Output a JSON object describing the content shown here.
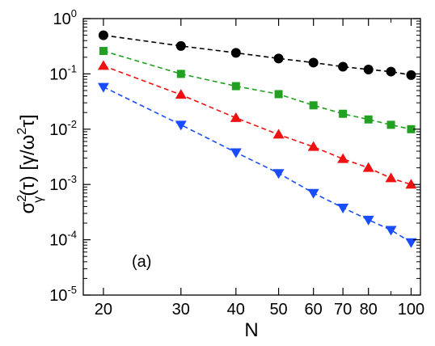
{
  "chart_data": {
    "type": "scatter",
    "panel_label": "(a)",
    "xlabel": "N",
    "ylabel": {
      "main": "σ",
      "sup": "2",
      "sub": "γ",
      "rest_open": "(τ) [γ/ω",
      "rest_sup": "2",
      "rest_close": "τ]"
    },
    "x_scale": "log",
    "y_scale": "log",
    "xlim": [
      18,
      105
    ],
    "ylim": [
      1e-05,
      1
    ],
    "x_ticks": [
      20,
      30,
      40,
      50,
      60,
      70,
      80,
      100
    ],
    "x_tick_labels": [
      "20",
      "30",
      "40",
      "50",
      "60",
      "70",
      "80",
      "100"
    ],
    "y_ticks": [
      {
        "value": 1,
        "base": "10",
        "exp": "0"
      },
      {
        "value": 0.1,
        "base": "10",
        "exp": "-1"
      },
      {
        "value": 0.01,
        "base": "10",
        "exp": "-2"
      },
      {
        "value": 0.001,
        "base": "10",
        "exp": "-3"
      },
      {
        "value": 0.0001,
        "base": "10",
        "exp": "-4"
      },
      {
        "value": 1e-05,
        "base": "10",
        "exp": "-5"
      }
    ],
    "grid": false,
    "series": [
      {
        "marker": "circle",
        "color": "#000000",
        "x": [
          20,
          30,
          40,
          50,
          60,
          70,
          80,
          90,
          100
        ],
        "y": [
          0.5,
          0.32,
          0.24,
          0.19,
          0.16,
          0.135,
          0.12,
          0.11,
          0.095
        ]
      },
      {
        "marker": "square",
        "color": "#22a022",
        "x": [
          20,
          30,
          40,
          50,
          60,
          70,
          80,
          90,
          100
        ],
        "y": [
          0.26,
          0.1,
          0.06,
          0.043,
          0.027,
          0.019,
          0.015,
          0.012,
          0.01
        ]
      },
      {
        "marker": "triangle-up",
        "color": "#ee1111",
        "x": [
          20,
          30,
          40,
          50,
          60,
          70,
          80,
          90,
          100
        ],
        "y": [
          0.14,
          0.042,
          0.016,
          0.008,
          0.0048,
          0.0029,
          0.002,
          0.0013,
          0.001
        ]
      },
      {
        "marker": "triangle-down",
        "color": "#1a4cff",
        "x": [
          20,
          30,
          40,
          50,
          60,
          70,
          80,
          90,
          100
        ],
        "y": [
          0.058,
          0.012,
          0.0038,
          0.0016,
          0.0007,
          0.00038,
          0.00023,
          0.00015,
          9e-05
        ]
      }
    ]
  }
}
